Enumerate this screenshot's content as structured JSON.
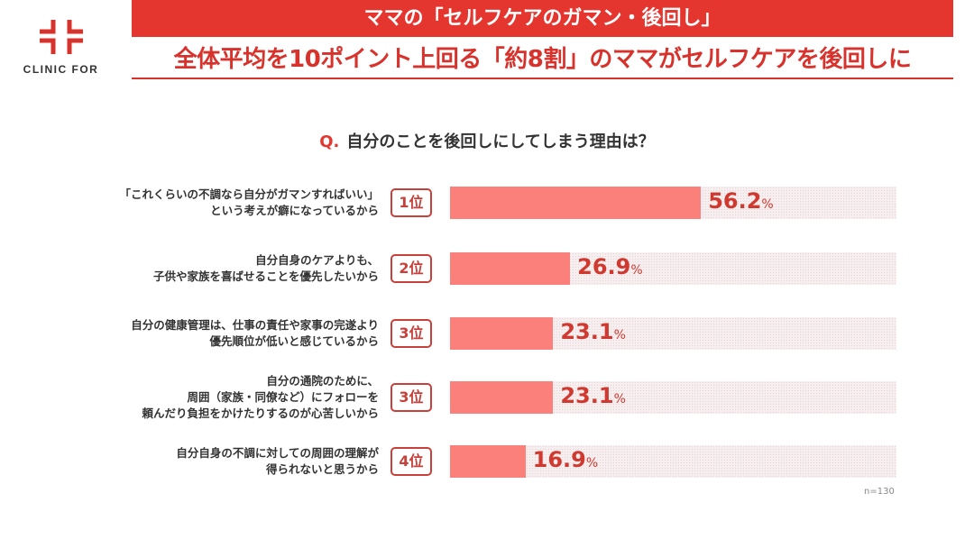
{
  "brand": {
    "name": "CLINIC FOR",
    "color": "#d8322c"
  },
  "header": {
    "banner": "ママの「セルフケアのガマン・後回し」",
    "subtitle": "全体平均を10ポイント上回る「約8割」のママがセルフケアを後回しに"
  },
  "question": {
    "prefix": "Q.",
    "text": "自分のことを後回しにしてしまう理由は？"
  },
  "chart_data": {
    "type": "bar",
    "orientation": "horizontal",
    "xlim": [
      0,
      100
    ],
    "unit": "%",
    "bar_color": "#fb7f7a",
    "value_color": "#d0392f",
    "categories": [
      "「これくらいの不調なら自分がガマンすればいい」\nという考えが癖になっているから",
      "自分自身のケアよりも、\n子供や家族を喜ばせることを優先したいから",
      "自分の健康管理は、仕事の責任や家事の完遂より\n優先順位が低いと感じているから",
      "自分の通院のために、\n周囲（家族・同僚など）にフォローを\n頼んだり負担をかけたりするのが心苦しいから",
      "自分自身の不調に対しての周囲の理解が\n得られないと思うから"
    ],
    "ranks": [
      "1位",
      "2位",
      "3位",
      "3位",
      "4位"
    ],
    "values": [
      56.2,
      26.9,
      23.1,
      23.1,
      16.9
    ],
    "value_labels": [
      "56.2",
      "26.9",
      "23.1",
      "23.1",
      "16.9"
    ],
    "note": "n=130"
  }
}
